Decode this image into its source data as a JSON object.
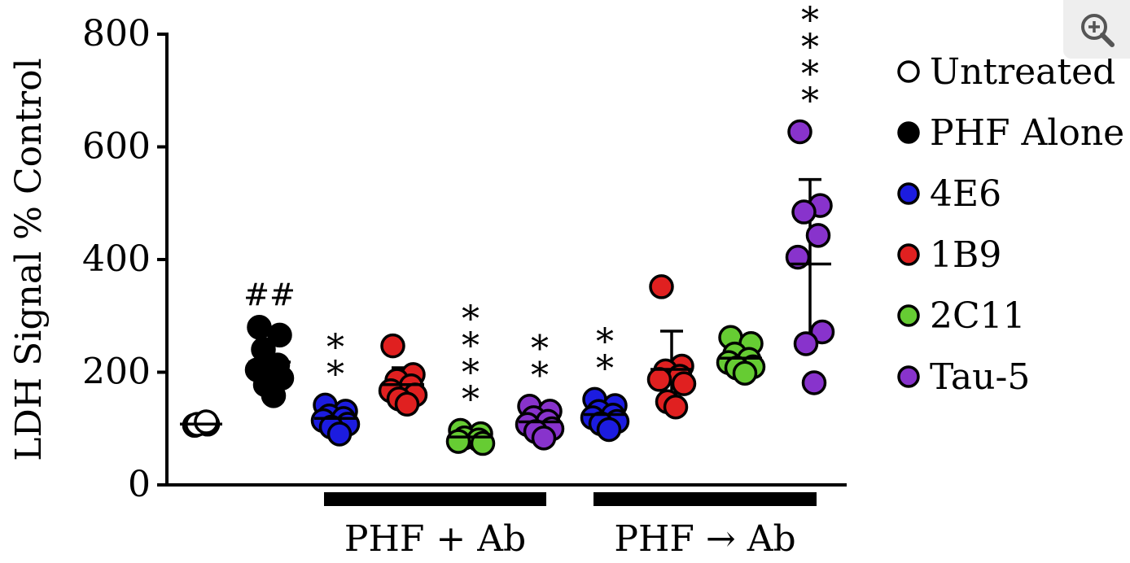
{
  "chart_data": {
    "type": "scatter",
    "ylabel": "LDH Signal % Control",
    "ylim": [
      0,
      800
    ],
    "yticks": [
      0,
      200,
      400,
      600,
      800
    ],
    "groups": [
      {
        "name": "Untreated",
        "color": "#ffffff",
        "values": [
          104,
          107,
          110,
          114
        ],
        "mean": 108,
        "sd": null,
        "sig": ""
      },
      {
        "name": "PHF Alone",
        "color": "#000000",
        "values": [
          278,
          265,
          243,
          215,
          205,
          190,
          175,
          160
        ],
        "mean": 218,
        "sd": 40,
        "sig": "##"
      },
      {
        "name": "4E6",
        "color": "#1c1ce0",
        "values": [
          140,
          130,
          125,
          120,
          115,
          108,
          100,
          92
        ],
        "mean": 118,
        "sd": 15,
        "sig": "**"
      },
      {
        "name": "1B9",
        "color": "#e02020",
        "values": [
          245,
          195,
          188,
          178,
          168,
          160,
          150,
          145
        ],
        "mean": 178,
        "sd": 30,
        "sig": ""
      },
      {
        "name": "2C11",
        "color": "#66cc33",
        "values": [
          95,
          90,
          86,
          82,
          78,
          74
        ],
        "mean": 85,
        "sd": 8,
        "sig": "****"
      },
      {
        "name": "Tau-5",
        "color": "#8833cc",
        "values": [
          138,
          130,
          122,
          115,
          108,
          100,
          92,
          85
        ],
        "mean": 112,
        "sd": 18,
        "sig": "**"
      },
      {
        "name": "4E6",
        "color": "#1c1ce0",
        "values": [
          150,
          140,
          133,
          126,
          120,
          113,
          106,
          100
        ],
        "mean": 125,
        "sd": 15,
        "sig": "**"
      },
      {
        "name": "1B9",
        "color": "#e02020",
        "values": [
          350,
          210,
          205,
          195,
          188,
          180,
          145,
          140
        ],
        "mean": 205,
        "sd": 68,
        "sig": ""
      },
      {
        "name": "2C11",
        "color": "#66cc33",
        "values": [
          260,
          250,
          235,
          225,
          218,
          210,
          205,
          200
        ],
        "mean": 225,
        "sd": 20,
        "sig": ""
      },
      {
        "name": "Tau-5",
        "color": "#8833cc",
        "values": [
          625,
          495,
          487,
          445,
          405,
          272,
          248,
          183
        ],
        "mean": 392,
        "sd": 150,
        "sig": "****"
      }
    ],
    "brackets": [
      {
        "label": "PHF + Ab",
        "from_group": 2,
        "to_group": 5
      },
      {
        "label": "PHF → Ab",
        "from_group": 6,
        "to_group": 9
      }
    ],
    "legend": [
      {
        "label": "Untreated",
        "color": "#ffffff"
      },
      {
        "label": "PHF Alone",
        "color": "#000000"
      },
      {
        "label": "4E6",
        "color": "#1c1ce0"
      },
      {
        "label": "1B9",
        "color": "#e02020"
      },
      {
        "label": "2C11",
        "color": "#66cc33"
      },
      {
        "label": "Tau-5",
        "color": "#8833cc"
      }
    ],
    "legend_position": "right"
  },
  "ui": {
    "zoom_icon": "zoom-in-icon"
  }
}
